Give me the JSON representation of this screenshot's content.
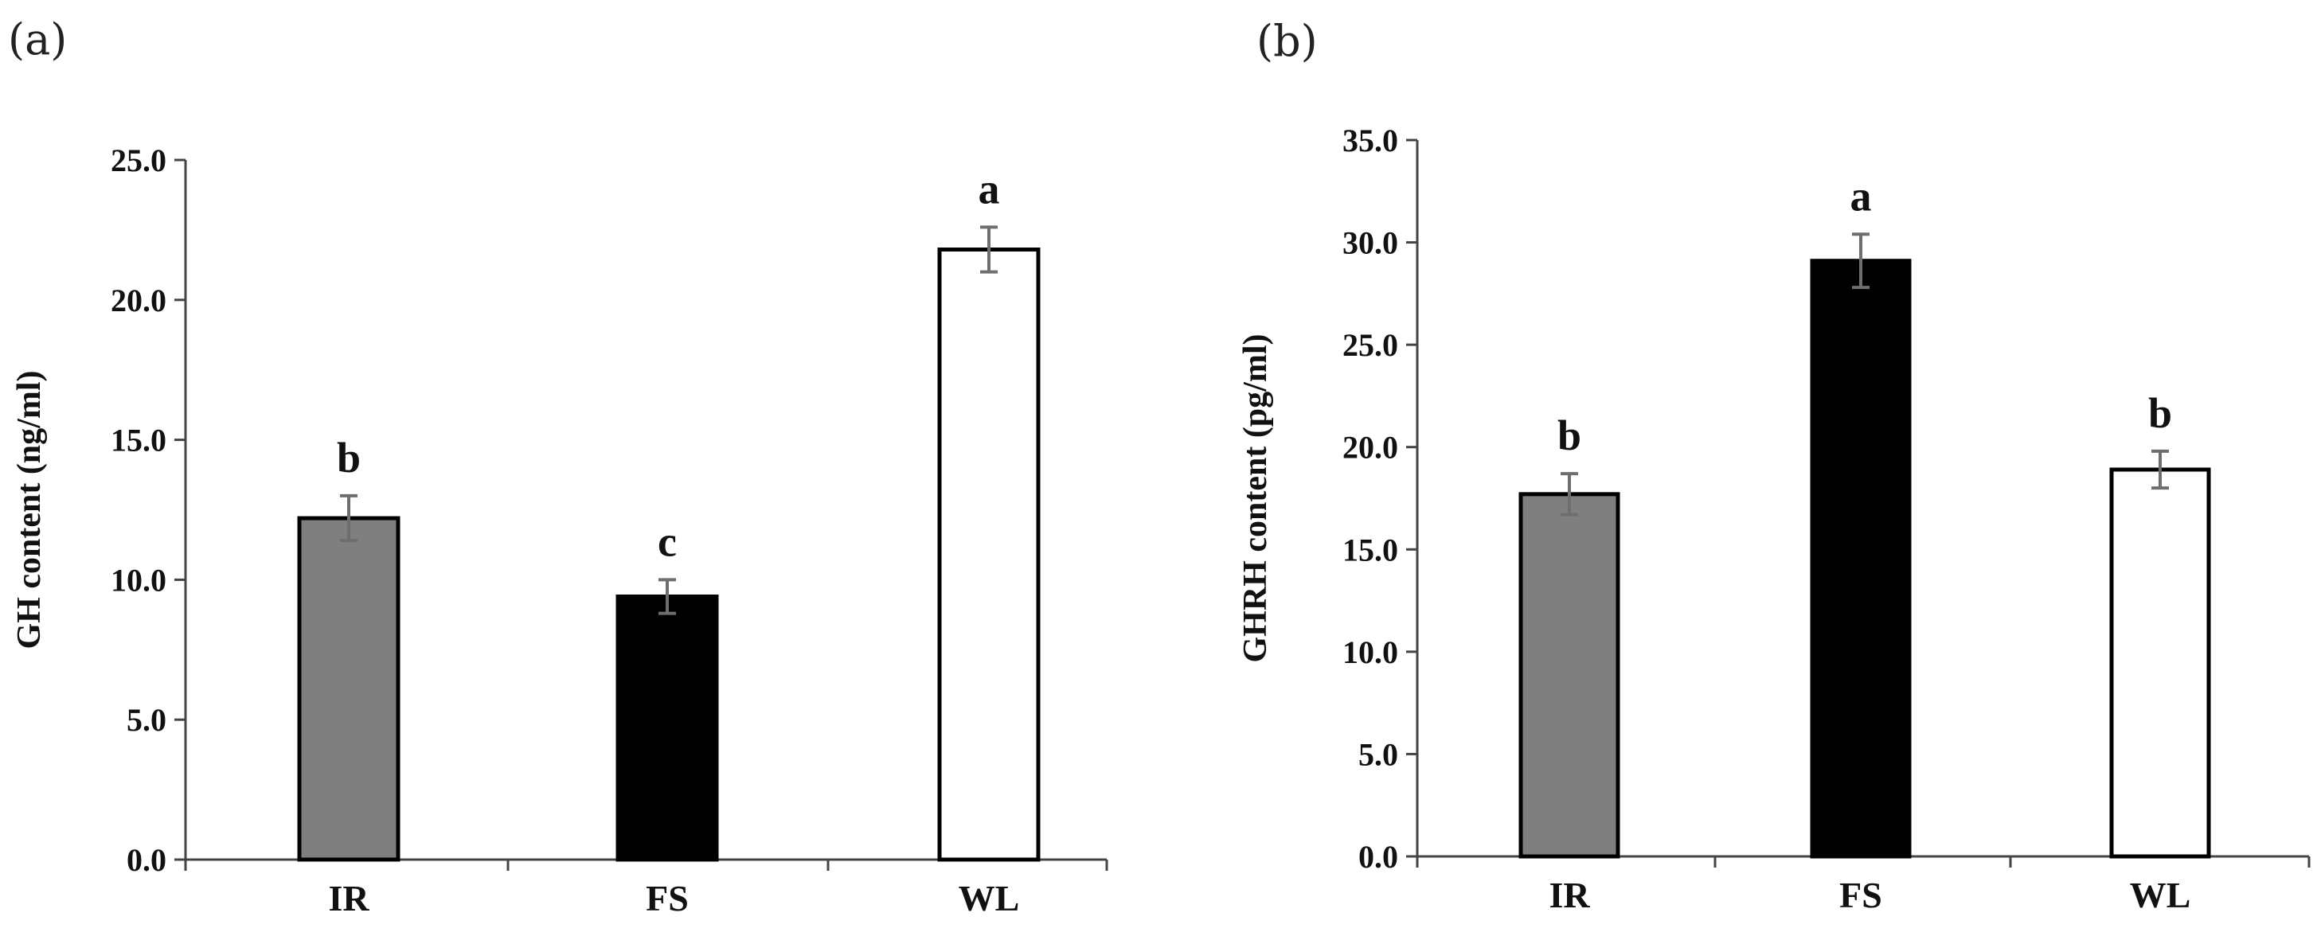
{
  "chart_data": [
    {
      "type": "bar",
      "panel": "(a)",
      "title": "",
      "xlabel": "",
      "ylabel": "GH content (ng/ml)",
      "categories": [
        "IR",
        "FS",
        "WL"
      ],
      "values": [
        12.2,
        9.4,
        21.8
      ],
      "errors": [
        0.8,
        0.6,
        0.8
      ],
      "significance": [
        "b",
        "c",
        "a"
      ],
      "bar_colors": [
        "#7f7f7f",
        "#000000",
        "#ffffff"
      ],
      "ylim": [
        0,
        25
      ],
      "yticks": [
        0,
        5,
        10,
        15,
        20,
        25
      ],
      "ytick_labels": [
        "0.0",
        "5.0",
        "10.0",
        "15.0",
        "20.0",
        "25.0"
      ],
      "grid": false
    },
    {
      "type": "bar",
      "panel": "(b)",
      "title": "",
      "xlabel": "",
      "ylabel": "GHRH content (pg/ml)",
      "categories": [
        "IR",
        "FS",
        "WL"
      ],
      "values": [
        17.7,
        29.1,
        18.9
      ],
      "errors": [
        1.0,
        1.3,
        0.9
      ],
      "significance": [
        "b",
        "a",
        "b"
      ],
      "bar_colors": [
        "#7f7f7f",
        "#000000",
        "#ffffff"
      ],
      "ylim": [
        0,
        35
      ],
      "yticks": [
        0,
        5,
        10,
        15,
        20,
        25,
        30,
        35
      ],
      "ytick_labels": [
        "0.0",
        "5.0",
        "10.0",
        "15.0",
        "20.0",
        "25.0",
        "30.0",
        "35.0"
      ],
      "grid": false
    }
  ]
}
